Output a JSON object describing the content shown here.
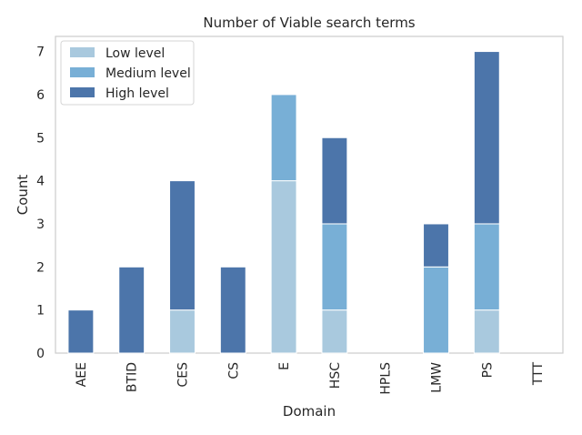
{
  "chart_data": {
    "type": "bar",
    "stacked": true,
    "title": "Number of Viable search terms",
    "xlabel": "Domain",
    "ylabel": "Count",
    "categories": [
      "AEE",
      "BTID",
      "CES",
      "CS",
      "E",
      "HSC",
      "HPLS",
      "LMW",
      "PS",
      "TTT"
    ],
    "series": [
      {
        "name": "Low level",
        "color": "#a9c9de",
        "values": [
          0,
          0,
          1,
          0,
          4,
          1,
          0,
          0,
          1,
          0
        ]
      },
      {
        "name": "Medium level",
        "color": "#78afd6",
        "values": [
          0,
          0,
          0,
          0,
          2,
          2,
          0,
          2,
          2,
          0
        ]
      },
      {
        "name": "High level",
        "color": "#4c75aa",
        "values": [
          1,
          2,
          3,
          2,
          0,
          2,
          0,
          1,
          4,
          0
        ]
      }
    ],
    "ylim": [
      0,
      7.35
    ],
    "yticks": [
      0,
      1,
      2,
      3,
      4,
      5,
      6,
      7
    ],
    "grid": false,
    "legend_position": "top-left"
  }
}
